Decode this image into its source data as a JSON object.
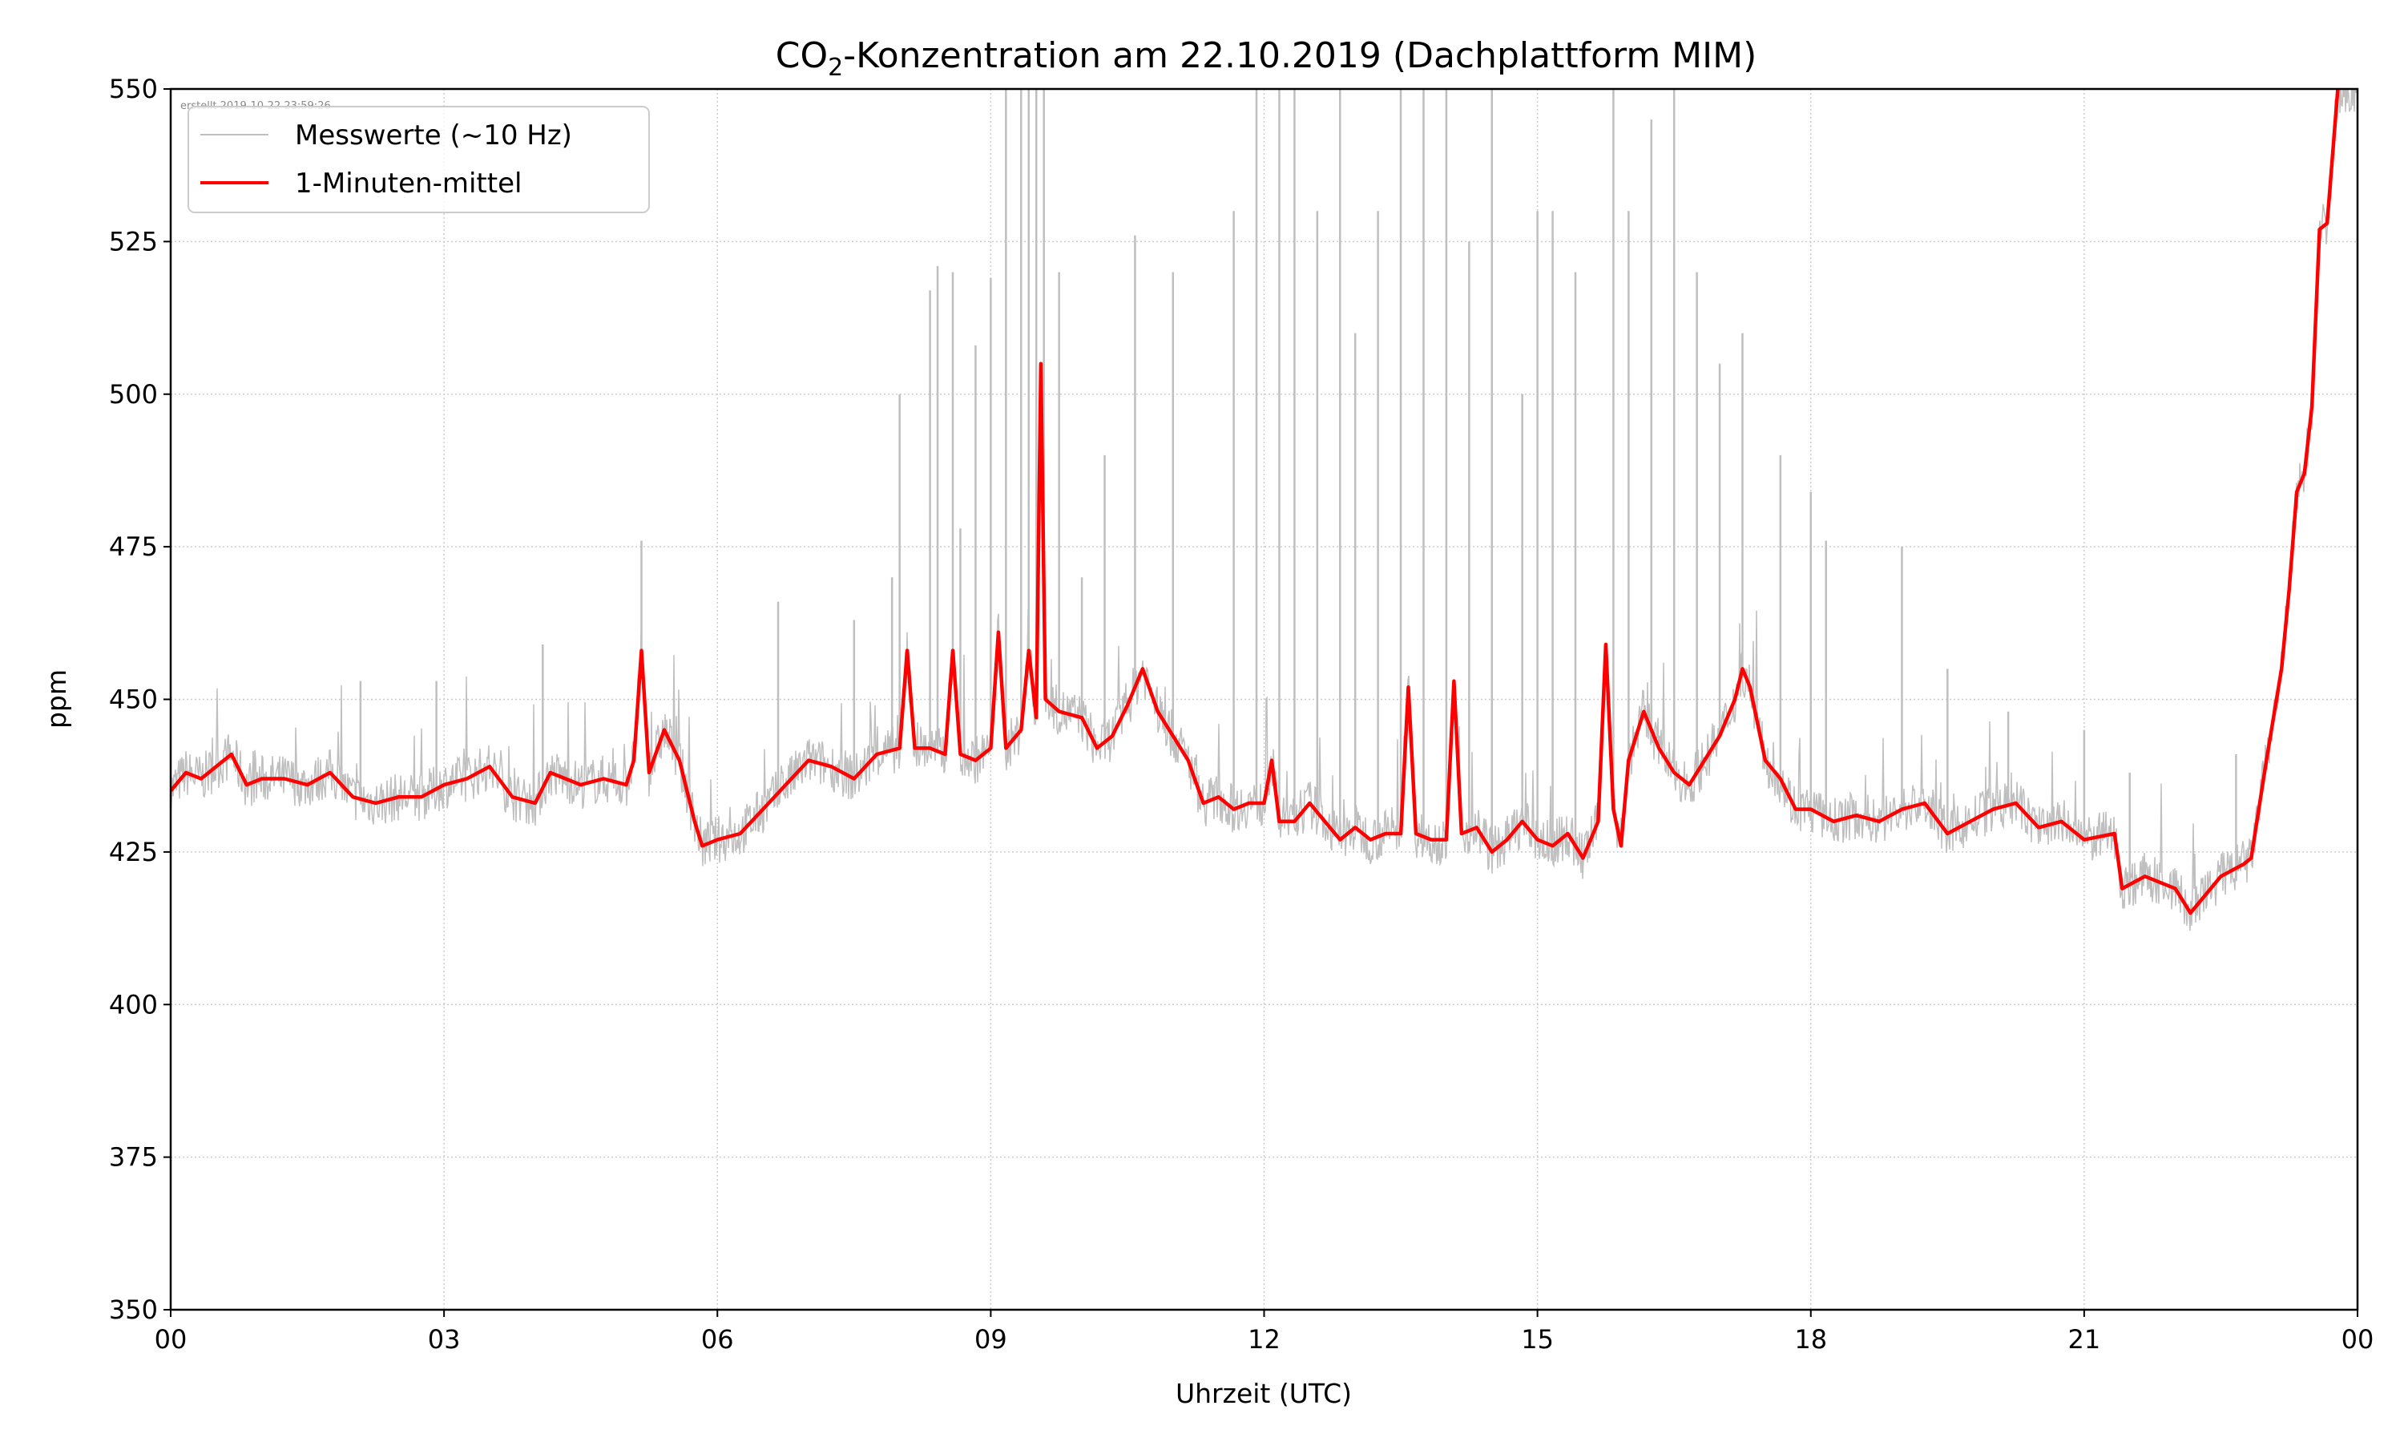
{
  "chart_data": {
    "type": "line",
    "title": "CO₂-Konzentration am 22.10.2019 (Dachplattform MIM)",
    "title_parts": {
      "pre": "CO",
      "sub": "2",
      "post": "-Konzentration am 22.10.2019 (Dachplattform MIM)"
    },
    "note": "erstellt 2019-10-22 23:59:26",
    "xlabel": "Uhrzeit (UTC)",
    "ylabel": "ppm",
    "xlim": [
      "00:00",
      "24:00"
    ],
    "ylim": [
      350,
      550
    ],
    "x_ticks": [
      "00",
      "03",
      "06",
      "09",
      "12",
      "15",
      "18",
      "21",
      "00"
    ],
    "y_ticks": [
      350,
      375,
      400,
      425,
      450,
      475,
      500,
      525,
      550
    ],
    "grid": true,
    "legend_position": "top-left",
    "colors": {
      "raw": "#bfbfbf",
      "mean": "#ff0000"
    },
    "series": [
      {
        "name": "Messwerte (~10 Hz)",
        "style": "thin-gray",
        "baseline": "follows 1-Minuten-mittel with noise",
        "peaks": [
          [
            "02:05",
            453
          ],
          [
            "02:55",
            453
          ],
          [
            "04:05",
            459
          ],
          [
            "05:10",
            476
          ],
          [
            "06:40",
            466
          ],
          [
            "07:30",
            463
          ],
          [
            "07:55",
            470
          ],
          [
            "08:00",
            500
          ],
          [
            "08:20",
            517
          ],
          [
            "08:25",
            521
          ],
          [
            "08:35",
            520
          ],
          [
            "08:40",
            478
          ],
          [
            "08:50",
            508
          ],
          [
            "09:00",
            519
          ],
          [
            "09:10",
            550
          ],
          [
            "09:20",
            550
          ],
          [
            "09:25",
            550
          ],
          [
            "09:30",
            550
          ],
          [
            "09:35",
            550
          ],
          [
            "09:45",
            520
          ],
          [
            "10:00",
            470
          ],
          [
            "10:15",
            490
          ],
          [
            "10:35",
            526
          ],
          [
            "11:00",
            520
          ],
          [
            "11:40",
            530
          ],
          [
            "11:55",
            550
          ],
          [
            "12:10",
            550
          ],
          [
            "12:20",
            550
          ],
          [
            "12:35",
            530
          ],
          [
            "12:50",
            550
          ],
          [
            "13:00",
            510
          ],
          [
            "13:15",
            530
          ],
          [
            "13:30",
            550
          ],
          [
            "13:45",
            550
          ],
          [
            "14:00",
            550
          ],
          [
            "14:15",
            525
          ],
          [
            "14:30",
            550
          ],
          [
            "14:50",
            500
          ],
          [
            "15:00",
            530
          ],
          [
            "15:10",
            530
          ],
          [
            "15:25",
            520
          ],
          [
            "15:50",
            550
          ],
          [
            "16:00",
            530
          ],
          [
            "16:15",
            545
          ],
          [
            "16:30",
            550
          ],
          [
            "16:45",
            520
          ],
          [
            "17:00",
            505
          ],
          [
            "17:15",
            510
          ],
          [
            "17:40",
            490
          ],
          [
            "18:00",
            484
          ],
          [
            "18:10",
            476
          ],
          [
            "19:00",
            475
          ],
          [
            "19:30",
            455
          ],
          [
            "20:10",
            448
          ],
          [
            "21:00",
            445
          ],
          [
            "21:30",
            438
          ],
          [
            "22:40",
            441
          ],
          [
            "23:55",
            550
          ]
        ]
      },
      {
        "name": "1-Minuten-mittel",
        "style": "red",
        "points": [
          [
            "00:00",
            435
          ],
          [
            "00:10",
            438
          ],
          [
            "00:20",
            437
          ],
          [
            "00:30",
            439
          ],
          [
            "00:40",
            441
          ],
          [
            "00:50",
            436
          ],
          [
            "01:00",
            437
          ],
          [
            "01:15",
            437
          ],
          [
            "01:30",
            436
          ],
          [
            "01:45",
            438
          ],
          [
            "02:00",
            434
          ],
          [
            "02:15",
            433
          ],
          [
            "02:30",
            434
          ],
          [
            "02:45",
            434
          ],
          [
            "03:00",
            436
          ],
          [
            "03:15",
            437
          ],
          [
            "03:30",
            439
          ],
          [
            "03:45",
            434
          ],
          [
            "04:00",
            433
          ],
          [
            "04:10",
            438
          ],
          [
            "04:20",
            437
          ],
          [
            "04:30",
            436
          ],
          [
            "04:45",
            437
          ],
          [
            "05:00",
            436
          ],
          [
            "05:05",
            440
          ],
          [
            "05:10",
            458
          ],
          [
            "05:15",
            438
          ],
          [
            "05:25",
            445
          ],
          [
            "05:35",
            440
          ],
          [
            "05:45",
            430
          ],
          [
            "05:50",
            426
          ],
          [
            "06:00",
            427
          ],
          [
            "06:15",
            428
          ],
          [
            "06:30",
            432
          ],
          [
            "06:45",
            436
          ],
          [
            "07:00",
            440
          ],
          [
            "07:15",
            439
          ],
          [
            "07:30",
            437
          ],
          [
            "07:45",
            441
          ],
          [
            "08:00",
            442
          ],
          [
            "08:05",
            458
          ],
          [
            "08:10",
            442
          ],
          [
            "08:20",
            442
          ],
          [
            "08:30",
            441
          ],
          [
            "08:35",
            458
          ],
          [
            "08:40",
            441
          ],
          [
            "08:50",
            440
          ],
          [
            "09:00",
            442
          ],
          [
            "09:05",
            461
          ],
          [
            "09:10",
            442
          ],
          [
            "09:20",
            445
          ],
          [
            "09:25",
            458
          ],
          [
            "09:30",
            447
          ],
          [
            "09:33",
            505
          ],
          [
            "09:36",
            450
          ],
          [
            "09:45",
            448
          ],
          [
            "10:00",
            447
          ],
          [
            "10:10",
            442
          ],
          [
            "10:20",
            444
          ],
          [
            "10:30",
            449
          ],
          [
            "10:40",
            455
          ],
          [
            "10:50",
            448
          ],
          [
            "11:00",
            444
          ],
          [
            "11:10",
            440
          ],
          [
            "11:20",
            433
          ],
          [
            "11:30",
            434
          ],
          [
            "11:40",
            432
          ],
          [
            "11:50",
            433
          ],
          [
            "12:00",
            433
          ],
          [
            "12:05",
            440
          ],
          [
            "12:10",
            430
          ],
          [
            "12:20",
            430
          ],
          [
            "12:30",
            433
          ],
          [
            "12:40",
            430
          ],
          [
            "12:50",
            427
          ],
          [
            "13:00",
            429
          ],
          [
            "13:10",
            427
          ],
          [
            "13:20",
            428
          ],
          [
            "13:30",
            428
          ],
          [
            "13:35",
            452
          ],
          [
            "13:40",
            428
          ],
          [
            "13:50",
            427
          ],
          [
            "14:00",
            427
          ],
          [
            "14:05",
            453
          ],
          [
            "14:10",
            428
          ],
          [
            "14:20",
            429
          ],
          [
            "14:30",
            425
          ],
          [
            "14:40",
            427
          ],
          [
            "14:50",
            430
          ],
          [
            "15:00",
            427
          ],
          [
            "15:10",
            426
          ],
          [
            "15:20",
            428
          ],
          [
            "15:30",
            424
          ],
          [
            "15:40",
            430
          ],
          [
            "15:45",
            459
          ],
          [
            "15:50",
            432
          ],
          [
            "15:55",
            426
          ],
          [
            "16:00",
            440
          ],
          [
            "16:10",
            448
          ],
          [
            "16:20",
            442
          ],
          [
            "16:30",
            438
          ],
          [
            "16:40",
            436
          ],
          [
            "16:50",
            440
          ],
          [
            "17:00",
            444
          ],
          [
            "17:10",
            450
          ],
          [
            "17:15",
            455
          ],
          [
            "17:20",
            452
          ],
          [
            "17:30",
            440
          ],
          [
            "17:40",
            437
          ],
          [
            "17:50",
            432
          ],
          [
            "18:00",
            432
          ],
          [
            "18:15",
            430
          ],
          [
            "18:30",
            431
          ],
          [
            "18:45",
            430
          ],
          [
            "19:00",
            432
          ],
          [
            "19:15",
            433
          ],
          [
            "19:30",
            428
          ],
          [
            "19:45",
            430
          ],
          [
            "20:00",
            432
          ],
          [
            "20:15",
            433
          ],
          [
            "20:30",
            429
          ],
          [
            "20:45",
            430
          ],
          [
            "21:00",
            427
          ],
          [
            "21:20",
            428
          ],
          [
            "21:25",
            419
          ],
          [
            "21:40",
            421
          ],
          [
            "22:00",
            419
          ],
          [
            "22:10",
            415
          ],
          [
            "22:20",
            418
          ],
          [
            "22:30",
            421
          ],
          [
            "22:45",
            423
          ],
          [
            "22:50",
            424
          ],
          [
            "23:00",
            440
          ],
          [
            "23:10",
            455
          ],
          [
            "23:15",
            468
          ],
          [
            "23:20",
            484
          ],
          [
            "23:25",
            487
          ],
          [
            "23:30",
            498
          ],
          [
            "23:35",
            527
          ],
          [
            "23:40",
            528
          ],
          [
            "23:47",
            550
          ]
        ]
      }
    ]
  }
}
